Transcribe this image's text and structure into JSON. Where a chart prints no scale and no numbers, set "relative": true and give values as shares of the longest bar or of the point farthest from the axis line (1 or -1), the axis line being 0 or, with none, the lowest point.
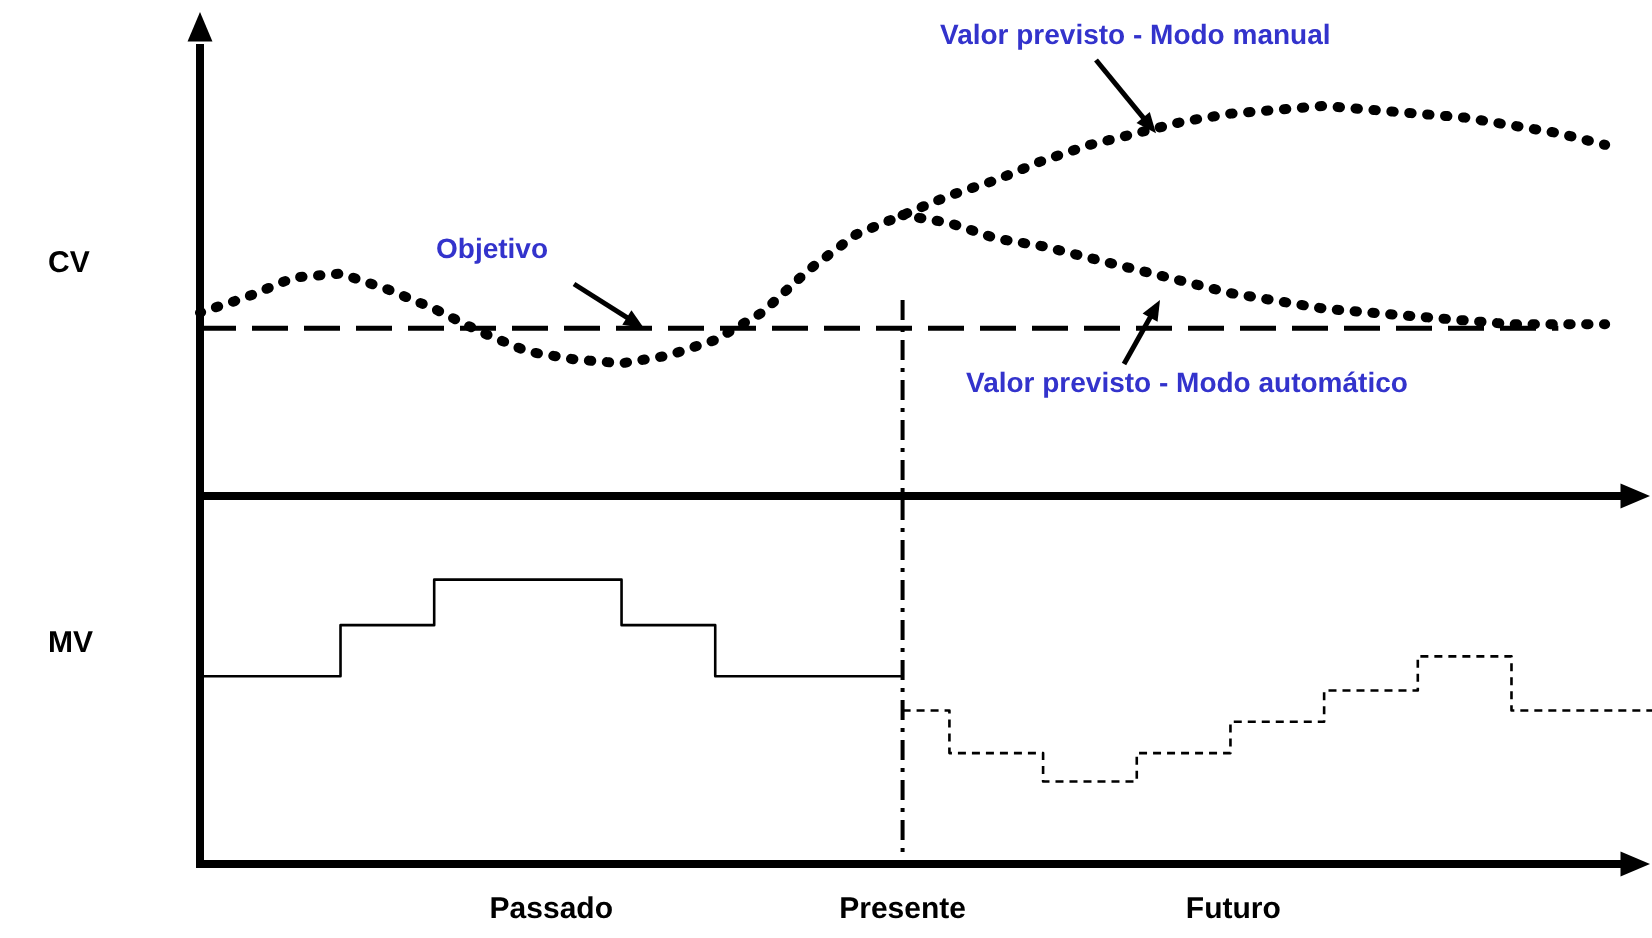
{
  "chart_data": [
    {
      "type": "line",
      "ylabel": "CV",
      "relative": true,
      "marker": "none",
      "legend": false,
      "grid": false,
      "categories": [
        null,
        null,
        null,
        null,
        null,
        null,
        null,
        null,
        null,
        null,
        null,
        null,
        null,
        null,
        null,
        null,
        null,
        null,
        null,
        null,
        null,
        null,
        null,
        null,
        null,
        null,
        null,
        null,
        null,
        null,
        null,
        null
      ],
      "series": [
        {
          "color": "#000000",
          "line_style": "dotted",
          "values": [
            0.47,
            0.51,
            0.56,
            0.57,
            0.53,
            0.48,
            0.42,
            0.37,
            0.35,
            0.34,
            0.36,
            0.4,
            0.47,
            0.58,
            0.67,
            0.72,
            0.77,
            0.81,
            0.86,
            0.9,
            0.93,
            0.96,
            0.98,
            0.99,
            1,
            0.99,
            0.98,
            0.97,
            0.95,
            0.93,
            0.9,
            null
          ]
        },
        {
          "color": "#000000",
          "line_style": "dotted",
          "values": [
            null,
            null,
            null,
            null,
            null,
            null,
            null,
            null,
            null,
            null,
            null,
            null,
            null,
            null,
            null,
            0.72,
            0.7,
            0.66,
            0.64,
            0.61,
            0.58,
            0.55,
            0.52,
            0.5,
            0.48,
            0.47,
            0.46,
            0.45,
            0.44,
            0.44,
            0.44,
            null
          ]
        },
        {
          "color": "#000000",
          "line_style": "dashed",
          "values": [
            0.43,
            0.43,
            0.43,
            0.43,
            0.43,
            0.43,
            0.43,
            0.43,
            0.43,
            0.43,
            0.43,
            0.43,
            0.43,
            0.43,
            0.43,
            0.43,
            0.43,
            0.43,
            0.43,
            0.43,
            0.43,
            0.43,
            0.43,
            0.43,
            0.43,
            0.43,
            0.43,
            0.43,
            0.43,
            0.43,
            null,
            null
          ]
        }
      ],
      "annotations": [
        {
          "text": "Valor previsto - Modo manual",
          "y": 0.93
        },
        "Valor previsto - Modo automático",
        {
          "text": "Objetivo",
          "y": 0.43
        }
      ]
    },
    {
      "type": "step",
      "ylabel": "MV",
      "relative": true,
      "marker": "none",
      "legend": false,
      "grid": false,
      "categories": [
        null,
        null,
        null,
        null,
        null,
        null,
        null,
        null,
        null,
        null,
        null,
        null,
        null,
        null,
        null,
        null,
        null,
        null,
        null,
        null,
        null,
        null,
        null,
        null,
        null,
        null,
        null,
        null,
        null,
        null,
        null,
        null
      ],
      "series": [
        {
          "color": "#000000",
          "line_style": "solid",
          "values": [
            0.66,
            0.66,
            0.66,
            0.66,
            0.84,
            0.84,
            1,
            1,
            1,
            1,
            0.84,
            0.84,
            0.66,
            0.66,
            0.66,
            0.66,
            null,
            null,
            null,
            null,
            null,
            null,
            null,
            null,
            null,
            null,
            null,
            null,
            null,
            null,
            null,
            null
          ]
        },
        {
          "color": "#000000",
          "line_style": "dashed",
          "values": [
            null,
            null,
            null,
            null,
            null,
            null,
            null,
            null,
            null,
            null,
            null,
            null,
            null,
            null,
            null,
            0.54,
            0.54,
            0.39,
            0.39,
            0.29,
            0.29,
            0.39,
            0.39,
            0.5,
            0.5,
            0.61,
            0.61,
            0.73,
            0.73,
            0.54,
            0.54,
            0.54
          ]
        }
      ],
      "annotations": [
        "Passado",
        "Presente",
        "Futuro"
      ]
    }
  ]
}
